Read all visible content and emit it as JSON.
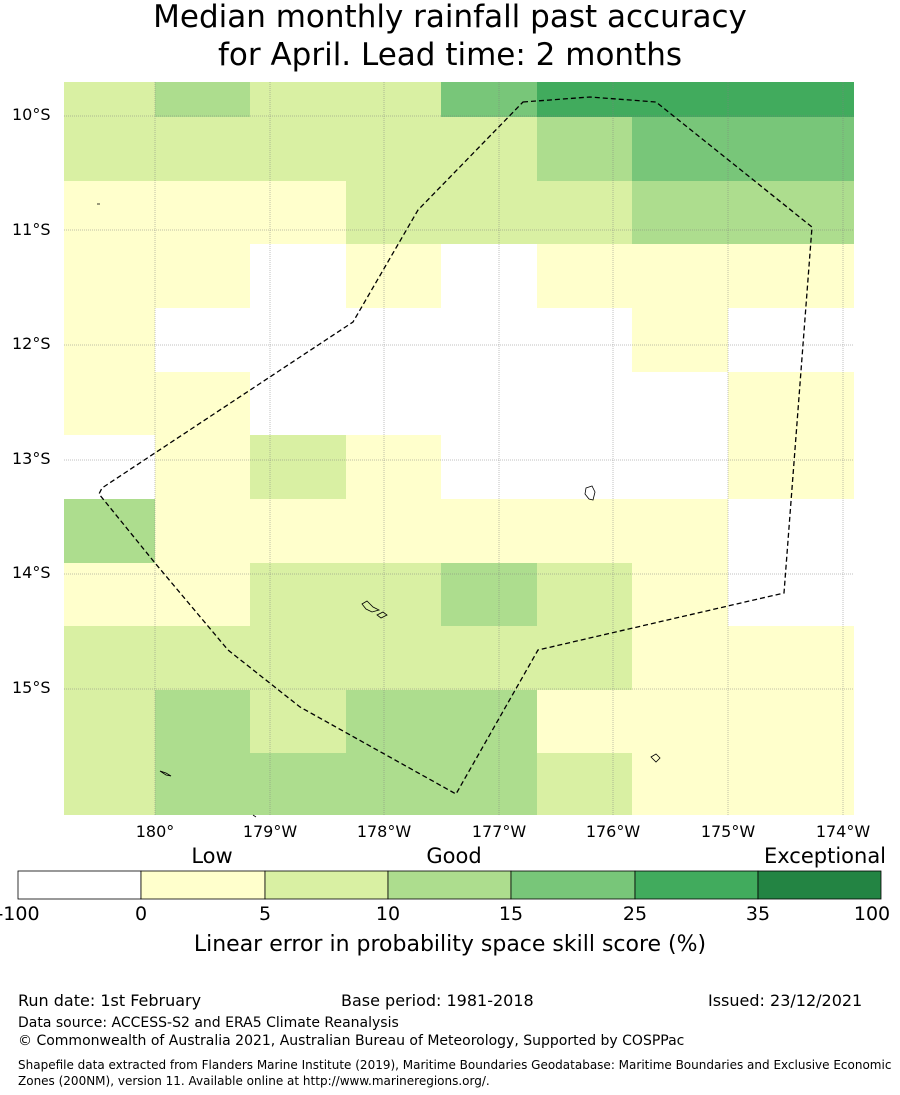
{
  "title": {
    "line1": "Median monthly rainfall past accuracy",
    "line2": "for April. Lead time: 2 months"
  },
  "axes": {
    "y_labels": [
      "10°S",
      "11°S",
      "12°S",
      "13°S",
      "14°S",
      "15°S"
    ],
    "x_labels": [
      "180°",
      "179°W",
      "178°W",
      "177°W",
      "176°W",
      "175°W",
      "174°W"
    ]
  },
  "legend": {
    "categories": [
      "Low",
      "Good",
      "Exceptional"
    ],
    "ticks": [
      "-100",
      "0",
      "5",
      "10",
      "15",
      "25",
      "35",
      "100"
    ],
    "colors": [
      "#ffffff",
      "#ffffcc",
      "#d9f0a3",
      "#addd8e",
      "#78c679",
      "#41ab5d",
      "#238443"
    ],
    "title": "Linear error in probability space skill score (%)"
  },
  "grid_bins": [
    [
      2,
      3,
      2,
      2,
      4,
      5,
      5,
      5
    ],
    [
      2,
      2,
      2,
      2,
      2,
      3,
      4,
      4
    ],
    [
      1,
      1,
      1,
      2,
      2,
      2,
      3,
      3
    ],
    [
      1,
      1,
      0,
      1,
      0,
      1,
      1,
      1
    ],
    [
      1,
      0,
      0,
      0,
      0,
      0,
      1,
      0
    ],
    [
      1,
      1,
      0,
      0,
      0,
      0,
      0,
      1
    ],
    [
      0,
      1,
      2,
      1,
      0,
      0,
      0,
      1
    ],
    [
      3,
      1,
      1,
      1,
      1,
      1,
      1,
      0
    ],
    [
      1,
      1,
      2,
      2,
      3,
      2,
      1,
      0
    ],
    [
      2,
      2,
      2,
      2,
      2,
      2,
      1,
      1
    ],
    [
      2,
      3,
      2,
      3,
      3,
      1,
      1,
      1
    ],
    [
      2,
      3,
      3,
      3,
      3,
      2,
      1,
      1
    ]
  ],
  "footer": {
    "run_date": "Run date: 1st February",
    "base_period": "Base period: 1981-2018",
    "issued": "Issued: 23/12/2021",
    "data_source": "Data source: ACCESS-S2 and ERA5 Climate Reanalysis",
    "copyright": "© Commonwealth of Australia 2021, Australian Bureau of Meteorology, Supported by COSPPac",
    "shapefile": "Shapefile data extracted from Flanders Marine Institute (2019), Maritime Boundaries Geodatabase: Maritime Boundaries and Exclusive Economic Zones (200NM), version 11. Available online at http://www.marineregions.org/."
  }
}
